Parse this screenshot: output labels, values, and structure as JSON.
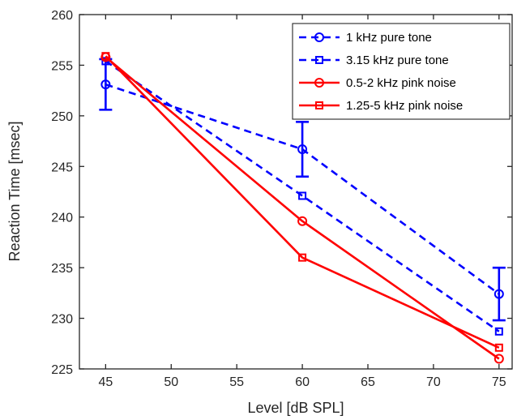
{
  "chart_data": {
    "type": "line",
    "title": "",
    "xlabel": "Level [dB SPL]",
    "ylabel": "Reaction Time [msec]",
    "xlim": [
      43,
      76
    ],
    "ylim": [
      225,
      260
    ],
    "xticks": [
      45,
      50,
      55,
      60,
      65,
      70,
      75
    ],
    "yticks": [
      225,
      230,
      235,
      240,
      245,
      250,
      255,
      260
    ],
    "grid": false,
    "legend_position": "top-right",
    "series": [
      {
        "name": "1 kHz pure tone",
        "color": "#0000ff",
        "line_style": "dashed",
        "marker": "circle",
        "x": [
          45,
          60,
          75
        ],
        "y": [
          253.1,
          246.7,
          232.4
        ],
        "error": [
          2.5,
          2.7,
          2.6
        ]
      },
      {
        "name": "3.15 kHz pure tone",
        "color": "#0000ff",
        "line_style": "dashed",
        "marker": "square",
        "x": [
          45,
          60,
          75
        ],
        "y": [
          255.4,
          242.1,
          228.7
        ]
      },
      {
        "name": "0.5-2 kHz pink noise",
        "color": "#ff0000",
        "line_style": "solid",
        "marker": "circle",
        "x": [
          45,
          60,
          75
        ],
        "y": [
          255.8,
          239.6,
          226.0
        ]
      },
      {
        "name": "1.25-5 kHz pink noise",
        "color": "#ff0000",
        "line_style": "solid",
        "marker": "square",
        "x": [
          45,
          60,
          75
        ],
        "y": [
          255.9,
          236.0,
          227.1
        ]
      }
    ]
  }
}
